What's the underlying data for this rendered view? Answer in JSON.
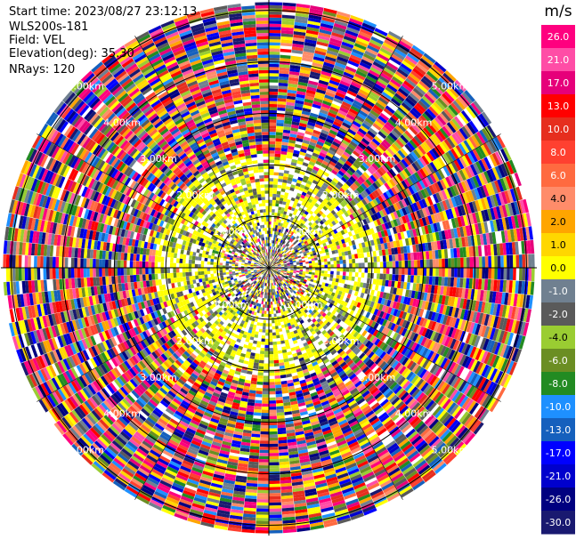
{
  "info": {
    "start_time": "Start time: 2023/08/27 23:12:13",
    "radar": "WLS200s-181",
    "field": "Field: VEL",
    "elevation": "Elevation(deg): 35.30",
    "nrays": "NRays: 120"
  },
  "chart_data": {
    "type": "heatmap",
    "projection": "polar-ppi",
    "field": "VEL",
    "nrays": 120,
    "range_rings_km": [
      1.0,
      2.0,
      3.0,
      4.0,
      5.0
    ],
    "range_ring_labels": [
      "1.00km",
      "2.00km",
      "3.00km",
      "4.00km",
      "5.00km"
    ],
    "max_range_km": 5.2,
    "colorbar": {
      "unit": "m/s",
      "ticks": [
        "26.0",
        "21.0",
        "17.0",
        "13.0",
        "10.0",
        "8.0",
        "6.0",
        "4.0",
        "2.0",
        "1.0",
        "0.0",
        "-1.0",
        "-2.0",
        "-4.0",
        "-6.0",
        "-8.0",
        "-10.0",
        "-13.0",
        "-17.0",
        "-21.0",
        "-26.0",
        "-30.0"
      ],
      "colors": [
        "#ff007f",
        "#ff4da6",
        "#e6007a",
        "#ff0000",
        "#e62e1e",
        "#ff4030",
        "#ff6a40",
        "#ff8c6a",
        "#ffa500",
        "#ffd700",
        "#ffff00",
        "#708090",
        "#5a5a5a",
        "#9acd32",
        "#6b8e23",
        "#228b22",
        "#1e90ff",
        "#1560bd",
        "#0000ff",
        "#0000cd",
        "#000080",
        "#191970"
      ]
    }
  }
}
